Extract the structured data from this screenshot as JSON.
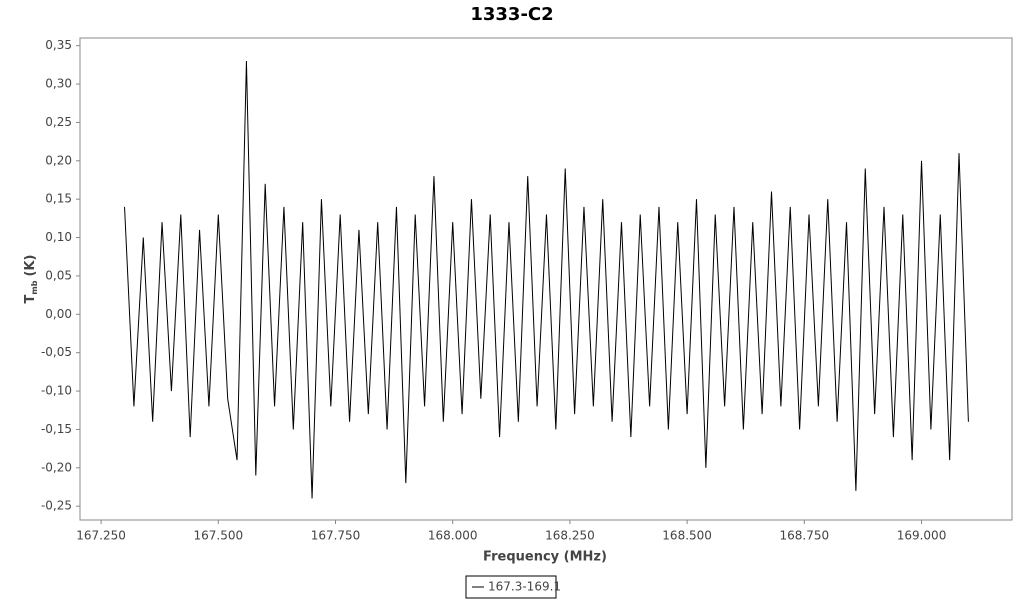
{
  "chart_data": {
    "type": "line",
    "title": "1333-C2",
    "x_label": "Frequency (MHz)",
    "y_label": {
      "main": "T",
      "sub": "mb",
      "unit": "(K)"
    },
    "xlim": [
      167.205,
      169.193
    ],
    "ylim": [
      -0.268,
      0.36
    ],
    "xticks": [
      {
        "value": 167.25,
        "label": "167.250"
      },
      {
        "value": 167.5,
        "label": "167.500"
      },
      {
        "value": 167.75,
        "label": "167.750"
      },
      {
        "value": 168,
        "label": "168.000"
      },
      {
        "value": 168.25,
        "label": "168.250"
      },
      {
        "value": 168.5,
        "label": "168.500"
      },
      {
        "value": 168.75,
        "label": "168.750"
      },
      {
        "value": 169,
        "label": "169.000"
      }
    ],
    "yticks": [
      {
        "value": -0.25,
        "label": "-0,25"
      },
      {
        "value": -0.2,
        "label": "-0,20"
      },
      {
        "value": -0.15,
        "label": "-0,15"
      },
      {
        "value": -0.1,
        "label": "-0,10"
      },
      {
        "value": -0.05,
        "label": "-0,05"
      },
      {
        "value": 0,
        "label": "0,00"
      },
      {
        "value": 0.05,
        "label": "0,05"
      },
      {
        "value": 0.1,
        "label": "0,10"
      },
      {
        "value": 0.15,
        "label": "0,15"
      },
      {
        "value": 0.2,
        "label": "0,20"
      },
      {
        "value": 0.25,
        "label": "0,25"
      },
      {
        "value": 0.3,
        "label": "0,30"
      },
      {
        "value": 0.35,
        "label": "0,35"
      }
    ],
    "grid": false,
    "legend": "bottom",
    "x": [
      167.3,
      167.32,
      167.34,
      167.36,
      167.38,
      167.4,
      167.42,
      167.44,
      167.46,
      167.48,
      167.5,
      167.52,
      167.54,
      167.56,
      167.58,
      167.6,
      167.62,
      167.64,
      167.66,
      167.68,
      167.7,
      167.72,
      167.74,
      167.76,
      167.78,
      167.8,
      167.82,
      167.84,
      167.86,
      167.88,
      167.9,
      167.92,
      167.94,
      167.96,
      167.98,
      168,
      168.02,
      168.04,
      168.06,
      168.08,
      168.1,
      168.12,
      168.14,
      168.16,
      168.18,
      168.2,
      168.22,
      168.24,
      168.26,
      168.28,
      168.3,
      168.32,
      168.34,
      168.36,
      168.38,
      168.4,
      168.42,
      168.44,
      168.46,
      168.48,
      168.5,
      168.52,
      168.54,
      168.56,
      168.58,
      168.6,
      168.62,
      168.64,
      168.66,
      168.68,
      168.7,
      168.72,
      168.74,
      168.76,
      168.78,
      168.8,
      168.82,
      168.84,
      168.86,
      168.88,
      168.9,
      168.92,
      168.94,
      168.96,
      168.98,
      169,
      169.02,
      169.04,
      169.06,
      169.08,
      169.1
    ],
    "series": [
      {
        "name": "167.3-169.1",
        "color": "#000000",
        "values": [
          0.14,
          -0.12,
          0.1,
          -0.14,
          0.12,
          -0.1,
          0.13,
          -0.16,
          0.11,
          -0.12,
          0.13,
          -0.11,
          -0.19,
          0.33,
          -0.21,
          0.17,
          -0.12,
          0.14,
          -0.15,
          0.12,
          -0.24,
          0.15,
          -0.12,
          0.13,
          -0.14,
          0.11,
          -0.13,
          0.12,
          -0.15,
          0.14,
          -0.22,
          0.13,
          -0.12,
          0.18,
          -0.14,
          0.12,
          -0.13,
          0.15,
          -0.11,
          0.13,
          -0.16,
          0.12,
          -0.14,
          0.18,
          -0.12,
          0.13,
          -0.15,
          0.19,
          -0.13,
          0.14,
          -0.12,
          0.15,
          -0.14,
          0.12,
          -0.16,
          0.13,
          -0.12,
          0.14,
          -0.15,
          0.12,
          -0.13,
          0.15,
          -0.2,
          0.13,
          -0.12,
          0.14,
          -0.15,
          0.12,
          -0.13,
          0.16,
          -0.12,
          0.14,
          -0.15,
          0.13,
          -0.12,
          0.15,
          -0.14,
          0.12,
          -0.23,
          0.19,
          -0.13,
          0.14,
          -0.16,
          0.13,
          -0.19,
          0.2,
          -0.15,
          0.13,
          -0.19,
          0.21,
          -0.14
        ]
      }
    ]
  }
}
